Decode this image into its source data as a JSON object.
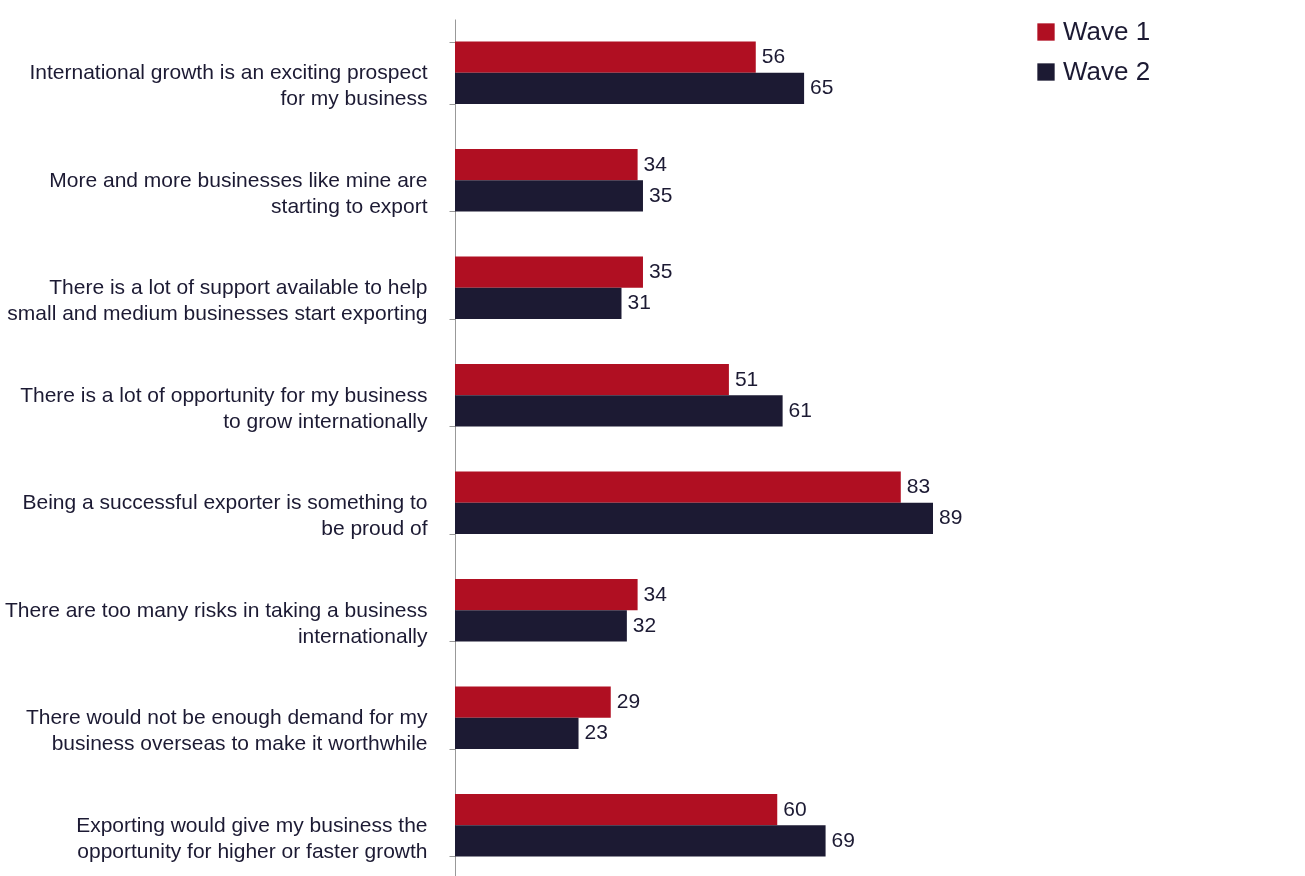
{
  "chart_data": {
    "type": "bar",
    "orientation": "horizontal",
    "data_labels": true,
    "legend": "right",
    "grid": false,
    "categories": [
      "International growth is an exciting prospect for my business",
      "More and more businesses like mine are starting to export",
      "There is a lot of support available to help small and medium businesses start exporting",
      "There is a lot of opportunity for my business to grow internationally",
      "Being a successful exporter is something to be proud of",
      "There are too many risks in taking a business internationally",
      "There would not be enough demand for my business overseas to make it worthwhile",
      "Exporting would give my business the opportunity for higher or faster growth"
    ],
    "series": [
      {
        "name": "Wave 1",
        "color": "#b00f22",
        "values": [
          56,
          34,
          35,
          51,
          83,
          34,
          29,
          60
        ]
      },
      {
        "name": "Wave 2",
        "color": "#1c1a33",
        "values": [
          65,
          35,
          31,
          61,
          89,
          32,
          23,
          69
        ]
      }
    ]
  }
}
